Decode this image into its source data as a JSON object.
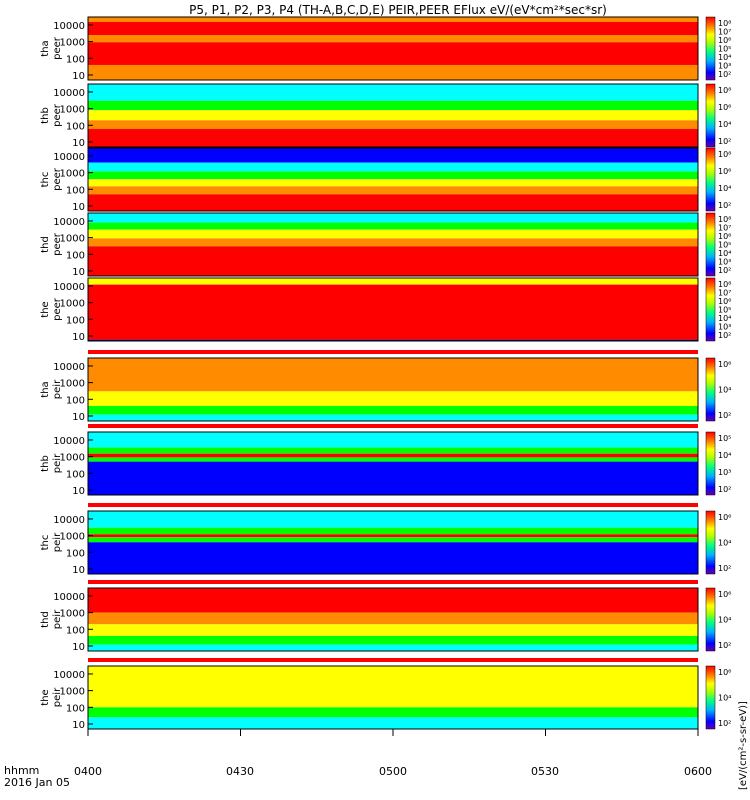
{
  "title": "P5, P1, P2, P3, P4 (TH-A,B,C,D,E) PEIR,PEER EFlux eV/(eV*cm²*sec*sr)",
  "time_label": "hhmm",
  "date_label": "2016 Jan 05",
  "colorbar_unit": "[eV/(cm²-s-sr-eV)]",
  "colors": {
    "red": "#ff0000",
    "orange": "#ff8c00",
    "yellow": "#ffff00",
    "green": "#00ff00",
    "cyan": "#00ffff",
    "blue": "#0000ff",
    "darkblue": "#000080"
  },
  "chart_data": {
    "type": "heatmap",
    "x_axis": {
      "range": [
        "0400",
        "0600"
      ],
      "ticks": [
        "0400",
        "0430",
        "0500",
        "0530",
        "0600"
      ]
    },
    "y_axis": {
      "scale": "log",
      "range": [
        5,
        30000
      ],
      "ticks": [
        "10000",
        "1000",
        "100",
        "10"
      ]
    },
    "panels": [
      {
        "probe": "tha",
        "species": "peer",
        "colorbar_ticks": [
          "10⁸",
          "10⁷",
          "10⁶",
          "10⁵",
          "10⁴",
          "10³",
          "10²"
        ]
      },
      {
        "probe": "thb",
        "species": "peer",
        "colorbar_ticks": [
          "10⁸",
          "10⁶",
          "10⁴",
          "10²"
        ]
      },
      {
        "probe": "thc",
        "species": "peer",
        "colorbar_ticks": [
          "10⁸",
          "10⁶",
          "10⁴",
          "10²"
        ]
      },
      {
        "probe": "thd",
        "species": "peer",
        "colorbar_ticks": [
          "10⁸",
          "10⁷",
          "10⁶",
          "10⁵",
          "10⁴",
          "10³",
          "10²"
        ]
      },
      {
        "probe": "the",
        "species": "peer",
        "colorbar_ticks": [
          "10⁸",
          "10⁷",
          "10⁶",
          "10⁵",
          "10⁴",
          "10³",
          "10²"
        ]
      },
      {
        "probe": "tha",
        "species": "peir",
        "colorbar_ticks": [
          "10⁶",
          "10⁴",
          "10²"
        ]
      },
      {
        "probe": "thb",
        "species": "peir",
        "colorbar_ticks": [
          "10⁵",
          "10⁴",
          "10³",
          "10²"
        ]
      },
      {
        "probe": "thc",
        "species": "peir",
        "colorbar_ticks": [
          "10⁶",
          "10⁴",
          "10²"
        ]
      },
      {
        "probe": "thd",
        "species": "peir",
        "colorbar_ticks": [
          "10⁶",
          "10⁴",
          "10²"
        ]
      },
      {
        "probe": "the",
        "species": "peir",
        "colorbar_ticks": [
          "10⁶",
          "10⁴",
          "10²"
        ]
      }
    ]
  }
}
